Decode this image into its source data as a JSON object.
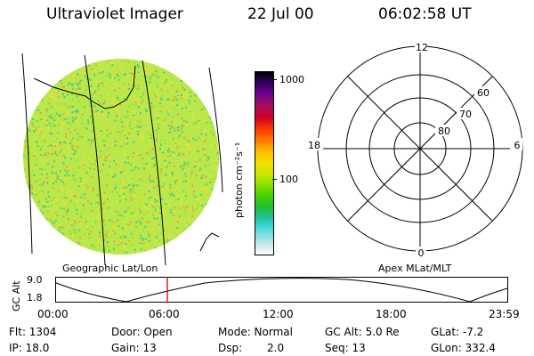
{
  "header": {
    "instrument": "Ultraviolet Imager",
    "date": "22 Jul 00",
    "time": "06:02:58 UT"
  },
  "colorbar": {
    "unit_label": "photon cm⁻²s⁻¹",
    "ticks": [
      "1000",
      "100"
    ],
    "scale": "log"
  },
  "polar_plot": {
    "mlt_labels": {
      "top": "12",
      "left": "18",
      "right": "6",
      "bottom": "0"
    },
    "mlat_labels": [
      "60",
      "70",
      "80"
    ]
  },
  "timeline": {
    "left_title": "Geographic Lat/Lon",
    "right_title": "Apex MLat/MLT",
    "y_axis_label": "GC Alt",
    "y_ticks": [
      "9.0",
      "1.8"
    ],
    "x_ticks": [
      "00:00",
      "06:00",
      "12:00",
      "18:00",
      "23:59"
    ],
    "current_time_marker": "06:02:58"
  },
  "status": {
    "row1": {
      "flt": "Flt: 1304",
      "door": "Door: Open",
      "mode": "Mode: Normal",
      "gcalt": "GC Alt: 5.0 Re",
      "glat": "GLat:  -7.2"
    },
    "row2": {
      "ip": "IP: 18.0",
      "gain": "Gain: 13",
      "dsp_label": "Dsp:",
      "dsp_value": "2.0",
      "seq": "Seq: 13",
      "glon": "GLon: 332.4"
    }
  },
  "colors": {
    "image_base": "#b8e84a",
    "marker": "#cc0000"
  }
}
